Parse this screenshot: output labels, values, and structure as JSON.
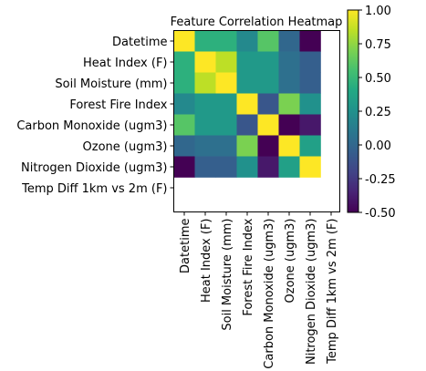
{
  "chart_data": {
    "type": "heatmap",
    "title": "Feature Correlation Heatmap",
    "xlabel": "",
    "ylabel": "",
    "row_labels": [
      "Datetime",
      "Heat Index (F)",
      "Soil Moisture (mm)",
      "Forest Fire Index",
      "Carbon Monoxide (ugm3)",
      "Ozone (ugm3)",
      "Nitrogen Dioxide (ugm3)",
      "Temp Diff 1km vs 2m (F)"
    ],
    "col_labels": [
      "Datetime",
      "Heat Index (F)",
      "Soil Moisture (mm)",
      "Forest Fire Index",
      "Carbon Monoxide (ugm3)",
      "Ozone (ugm3)",
      "Nitrogen Dioxide (ugm3)",
      "Temp Diff 1km vs 2m (F)"
    ],
    "values": [
      [
        1.0,
        0.45,
        0.45,
        0.2,
        0.6,
        0.0,
        -0.5,
        null
      ],
      [
        0.45,
        1.0,
        0.85,
        0.3,
        0.3,
        0.05,
        -0.05,
        null
      ],
      [
        0.45,
        0.85,
        1.0,
        0.3,
        0.3,
        0.05,
        -0.05,
        null
      ],
      [
        0.2,
        0.3,
        0.3,
        1.0,
        -0.1,
        0.7,
        0.25,
        null
      ],
      [
        0.6,
        0.3,
        0.3,
        -0.1,
        1.0,
        -0.5,
        -0.4,
        null
      ],
      [
        0.0,
        0.05,
        0.05,
        0.7,
        -0.5,
        1.0,
        0.35,
        null
      ],
      [
        -0.5,
        -0.05,
        -0.05,
        0.25,
        -0.4,
        0.35,
        1.0,
        null
      ],
      [
        null,
        null,
        null,
        null,
        null,
        null,
        null,
        null
      ]
    ],
    "colorbar": {
      "colormap": "viridis",
      "vmin": -0.5,
      "vmax": 1.0,
      "ticks": [
        "-0.50",
        "-0.25",
        "0.00",
        "0.25",
        "0.50",
        "0.75",
        "1.00"
      ],
      "tick_values": [
        -0.5,
        -0.25,
        0,
        0.25,
        0.5,
        0.75,
        1.0
      ]
    }
  }
}
